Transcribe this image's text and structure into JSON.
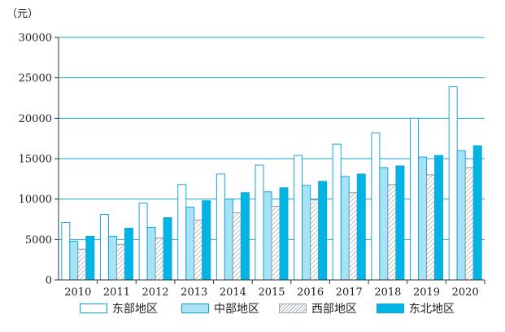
{
  "chart_data": {
    "type": "bar",
    "unit_label": "（元）",
    "categories": [
      "2010",
      "2011",
      "2012",
      "2013",
      "2014",
      "2015",
      "2016",
      "2017",
      "2018",
      "2019",
      "2020"
    ],
    "series": [
      {
        "name": "东部地区",
        "values": [
          7100,
          8100,
          9500,
          11800,
          13100,
          14200,
          15400,
          16800,
          18200,
          20000,
          23900
        ]
      },
      {
        "name": "中部地区",
        "values": [
          4800,
          5400,
          6500,
          9000,
          10000,
          10900,
          11700,
          12800,
          13900,
          15200,
          16000
        ]
      },
      {
        "name": "西部地区",
        "values": [
          3800,
          4400,
          5200,
          7400,
          8300,
          9100,
          9900,
          10800,
          11800,
          13000,
          13900
        ]
      },
      {
        "name": "东北地区",
        "values": [
          5400,
          6400,
          7700,
          9800,
          10800,
          11400,
          12200,
          13100,
          14100,
          15400,
          16600
        ]
      }
    ],
    "yticks": [
      "0",
      "5000",
      "10000",
      "15000",
      "20000",
      "25000",
      "30000"
    ],
    "ylim": [
      0,
      30000
    ],
    "grid": true,
    "legend_position": "bottom",
    "colors": {
      "axis": "#1aa5d6",
      "east_fill": "#ffffff",
      "central_fill": "#a7e3f6",
      "west_fill": "hatched",
      "northeast_fill": "#00b4e6"
    }
  }
}
